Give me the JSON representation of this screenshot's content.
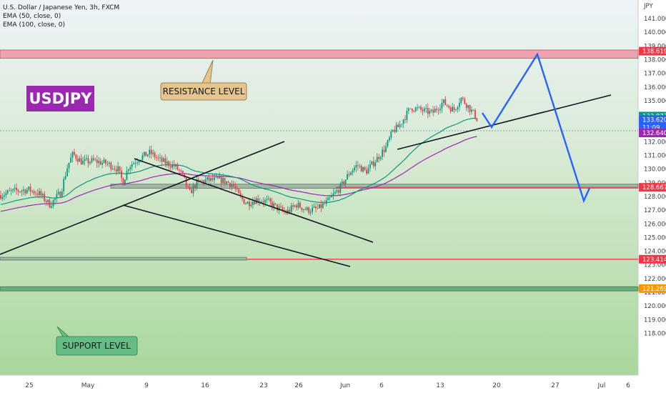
{
  "chart_data": {
    "type": "candlestick",
    "title": "U.S. Dollar / Japanese Yen, 3h, FXCM",
    "indicators": [
      "EMA (50, close, 0)",
      "EMA (100, close, 0)"
    ],
    "symbol": "USDJPY",
    "currency": "JPY",
    "y_ticks": [
      141,
      140,
      139,
      138,
      137,
      136,
      135,
      134,
      133,
      132,
      131,
      130,
      129,
      128,
      127,
      126,
      125,
      124,
      123,
      122,
      121,
      120,
      119,
      118
    ],
    "y_tick_labels": [
      "141.000",
      "140.000",
      "139.000",
      "138.000",
      "137.000",
      "136.000",
      "135.000",
      "134.000",
      "133.000",
      "132.000",
      "131.000",
      "130.000",
      "129.000",
      "128.000",
      "127.000",
      "126.000",
      "125.000",
      "124.000",
      "123.000",
      "122.000",
      "121.000",
      "120.000",
      "119.000",
      "118.000"
    ],
    "x_labels": [
      "25",
      "May",
      "9",
      "16",
      "23",
      "26",
      "Jun",
      "6",
      "13",
      "20",
      "27",
      "Jul",
      "6"
    ],
    "price_badges": [
      {
        "label": "138.619",
        "value": 138.619,
        "color": "#f23645"
      },
      {
        "label": "133.873",
        "value": 133.873,
        "color": "#089981"
      },
      {
        "label": "133.620",
        "value": 133.62,
        "color": "#2962ff"
      },
      {
        "label": "11:09",
        "value": 133.3,
        "color": "#2962ff"
      },
      {
        "label": "132.640",
        "value": 132.64,
        "color": "#9c27b0"
      },
      {
        "label": "128.667",
        "value": 128.667,
        "color": "#f23645"
      },
      {
        "label": "123.414",
        "value": 123.414,
        "color": "#f23645"
      },
      {
        "label": "121.269",
        "value": 121.269,
        "color": "#ff9800"
      }
    ],
    "annotations": {
      "resistance": "RESISTANCE LEVEL",
      "support": "SUPPORT LEVEL"
    },
    "zones": [
      {
        "name": "resistance",
        "low": 138.1,
        "high": 138.7
      },
      {
        "name": "mid-support",
        "low": 128.6,
        "high": 128.9
      },
      {
        "name": "support-lower",
        "low": 123.35,
        "high": 123.55
      },
      {
        "name": "support",
        "low": 121.1,
        "high": 121.4
      }
    ],
    "current_price": 133.62,
    "ylim": [
      117.4,
      141.9
    ],
    "colors": {
      "up": "#089981",
      "down": "#f23645",
      "ema50": "#089981",
      "ema100": "#9c27b0",
      "forecast": "#2962ff"
    }
  }
}
